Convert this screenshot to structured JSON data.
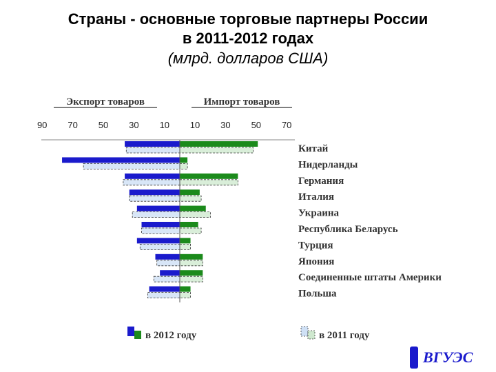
{
  "page": {
    "title_line1": "Страны - основные торговые партнеры России",
    "title_line2": "в 2011-2012 годах",
    "subtitle": "(млрд. долларов США)"
  },
  "chart_data": {
    "type": "bar",
    "orientation": "horizontal-diverging",
    "export_header": "Экспорт товаров",
    "import_header": "Импорт товаров",
    "export_ticks": [
      "90",
      "70",
      "50",
      "30",
      "10"
    ],
    "import_ticks": [
      "10",
      "30",
      "50",
      "70"
    ],
    "axis_range": [
      0,
      90
    ],
    "categories": [
      "Китай",
      "Нидерланды",
      "Германия",
      "Италия",
      "Украина",
      "Республика Беларусь",
      "Турция",
      "Япония",
      "Соединенные штаты Америки",
      "Польша"
    ],
    "series": [
      {
        "name": "в 2012 году",
        "group": "export",
        "year": "2012",
        "values": [
          36,
          77,
          36,
          33,
          28,
          25,
          28,
          16,
          13,
          20
        ]
      },
      {
        "name": "в 2011 году",
        "group": "export",
        "year": "2011",
        "values": [
          35,
          63,
          37,
          33,
          31,
          25,
          26,
          15,
          17,
          21
        ]
      },
      {
        "name": "в 2012 году",
        "group": "import",
        "year": "2012",
        "values": [
          51,
          5,
          38,
          13,
          17,
          12,
          7,
          15,
          15,
          7
        ]
      },
      {
        "name": "в 2011 году",
        "group": "import",
        "year": "2011",
        "values": [
          48,
          5,
          38,
          14,
          20,
          14,
          7,
          15,
          15,
          7
        ]
      }
    ],
    "legend": [
      {
        "label": "в 2012 году",
        "colors": [
          "#1a1acc",
          "#1b8a1b"
        ]
      },
      {
        "label": "в 2011 году",
        "colors": [
          "#cfe0f5",
          "#cfe8cf"
        ]
      }
    ],
    "legend_position": "bottom",
    "colors": {
      "export_2012": "#1a1acc",
      "export_2011": "#d8e6f7",
      "import_2012": "#1b8a1b",
      "import_2011": "#d9eed9"
    },
    "grid": false
  },
  "logo": {
    "text": "ВГУЭС"
  }
}
